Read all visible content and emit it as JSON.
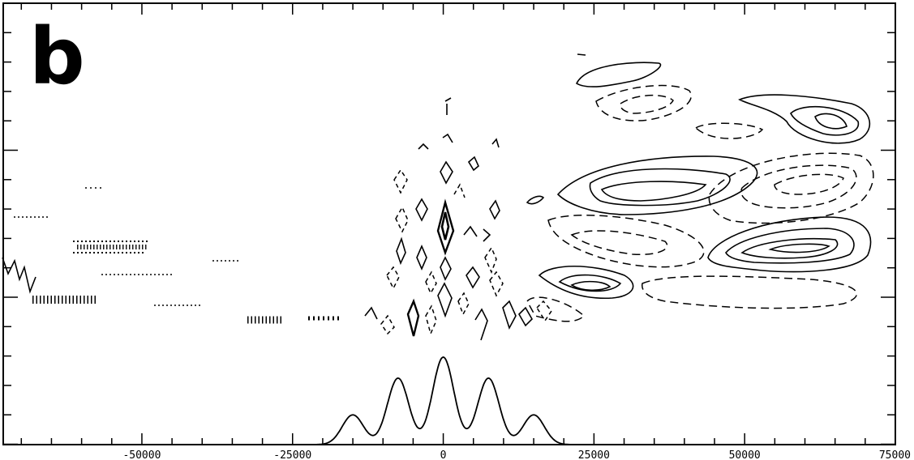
{
  "panel_label": "b",
  "chart_data": {
    "type": "contour",
    "xlim": [
      -73000,
      75000
    ],
    "x_ticks": [
      -50000,
      -25000,
      0,
      25000,
      50000,
      75000
    ],
    "x_tick_labels": [
      "-50000",
      "-25000",
      "0",
      "25000",
      "50000",
      "75000"
    ],
    "xlabel": "",
    "ylabel": "",
    "grid": false,
    "line_colors": {
      "positive": "#000000",
      "negative": "#000000"
    },
    "contour_line_styles": {
      "positive": "solid",
      "negative": "dashed"
    },
    "envelope_profile": {
      "description": "solid oscillating curve along the bottom of the plot",
      "peaks": [
        {
          "x": -15000,
          "amplitude": 0.34
        },
        {
          "x": -7500,
          "amplitude": 0.76
        },
        {
          "x": 0,
          "amplitude": 1.0
        },
        {
          "x": 7500,
          "amplitude": 0.76
        },
        {
          "x": 15000,
          "amplitude": 0.34
        }
      ],
      "support": [
        -22000,
        22000
      ]
    }
  }
}
